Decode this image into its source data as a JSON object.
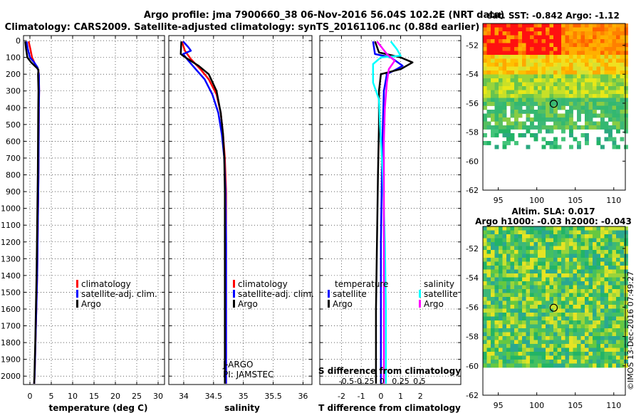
{
  "header": {
    "line1": "Argo profile: jma 7900660_38 06-Nov-2016 56.04S 102.2E (NRT data)",
    "line2": "Climatology: CARS2009. Satellite-adjusted climatology: synTS_20161106.nc (0.88d earlier)"
  },
  "colors": {
    "climatology": "#ff0000",
    "satellite": "#0000ff",
    "argo": "#000000",
    "sat_salinity": "#00ffff",
    "argo_salinity": "#ff00ff"
  },
  "chart_data": [
    {
      "type": "line",
      "name": "temperature-profile",
      "xlabel": "temperature (deg C)",
      "ylabel": "depth",
      "xlim": [
        -1.5,
        31.5
      ],
      "ylim": [
        2050,
        -30
      ],
      "xticks": [
        0,
        5,
        10,
        15,
        20,
        25,
        30
      ],
      "yticks": [
        0,
        100,
        200,
        300,
        400,
        500,
        600,
        700,
        800,
        900,
        1000,
        1100,
        1200,
        1300,
        1400,
        1500,
        1600,
        1700,
        1800,
        1900,
        2000
      ],
      "series": [
        {
          "name": "climatology",
          "color": "#ff0000",
          "points": [
            [
              -0.3,
              5
            ],
            [
              0.1,
              50
            ],
            [
              0.5,
              100
            ],
            [
              1.2,
              140
            ],
            [
              1.9,
              170
            ],
            [
              2.1,
              200
            ],
            [
              2.15,
              300
            ],
            [
              2.1,
              400
            ],
            [
              2.05,
              600
            ],
            [
              2.0,
              800
            ],
            [
              1.9,
              1000
            ],
            [
              1.8,
              1200
            ],
            [
              1.7,
              1400
            ],
            [
              1.5,
              1600
            ],
            [
              1.3,
              1800
            ],
            [
              1.1,
              2000
            ],
            [
              1.0,
              2045
            ]
          ]
        },
        {
          "name": "satellite-adj. clim.",
          "color": "#0000ff",
          "points": [
            [
              -0.8,
              5
            ],
            [
              -0.5,
              50
            ],
            [
              0.0,
              100
            ],
            [
              1.0,
              130
            ],
            [
              1.8,
              160
            ],
            [
              2.1,
              200
            ],
            [
              2.15,
              300
            ],
            [
              2.1,
              400
            ],
            [
              2.05,
              600
            ],
            [
              2.0,
              800
            ],
            [
              1.9,
              1000
            ],
            [
              1.8,
              1200
            ],
            [
              1.7,
              1400
            ],
            [
              1.5,
              1600
            ],
            [
              1.3,
              1800
            ],
            [
              1.1,
              2000
            ],
            [
              1.0,
              2045
            ]
          ]
        },
        {
          "name": "Argo",
          "color": "#000000",
          "points": [
            [
              -1.1,
              5
            ],
            [
              -0.9,
              50
            ],
            [
              -0.6,
              100
            ],
            [
              0.3,
              130
            ],
            [
              1.7,
              165
            ],
            [
              2.0,
              175
            ],
            [
              1.9,
              200
            ],
            [
              2.0,
              300
            ],
            [
              1.95,
              400
            ],
            [
              1.9,
              600
            ],
            [
              1.85,
              800
            ],
            [
              1.75,
              1000
            ],
            [
              1.65,
              1200
            ],
            [
              1.55,
              1400
            ],
            [
              1.4,
              1600
            ],
            [
              1.25,
              1800
            ],
            [
              1.05,
              2000
            ],
            [
              1.0,
              2045
            ]
          ]
        }
      ],
      "legend": [
        "climatology",
        "satellite-adj. clim.",
        "Argo"
      ]
    },
    {
      "type": "line",
      "name": "salinity-profile",
      "xlabel": "salinity",
      "ylabel": "depth",
      "xlim": [
        33.75,
        36.15
      ],
      "ylim": [
        2050,
        -30
      ],
      "xticks": [
        34,
        34.5,
        35,
        35.5,
        36
      ],
      "series": [
        {
          "name": "climatology",
          "color": "#ff0000",
          "points": [
            [
              33.97,
              5
            ],
            [
              34.02,
              60
            ],
            [
              34.12,
              110
            ],
            [
              34.28,
              170
            ],
            [
              34.42,
              230
            ],
            [
              34.55,
              320
            ],
            [
              34.62,
              430
            ],
            [
              34.66,
              560
            ],
            [
              34.69,
              700
            ],
            [
              34.71,
              900
            ],
            [
              34.71,
              1200
            ],
            [
              34.71,
              1600
            ],
            [
              34.71,
              2045
            ]
          ]
        },
        {
          "name": "satellite-adj. clim.",
          "color": "#0000ff",
          "points": [
            [
              33.99,
              5
            ],
            [
              34.08,
              40
            ],
            [
              34.12,
              60
            ],
            [
              33.99,
              80
            ],
            [
              34.08,
              120
            ],
            [
              34.2,
              170
            ],
            [
              34.35,
              230
            ],
            [
              34.48,
              320
            ],
            [
              34.58,
              430
            ],
            [
              34.64,
              560
            ],
            [
              34.68,
              700
            ],
            [
              34.7,
              900
            ],
            [
              34.71,
              1200
            ],
            [
              34.71,
              1600
            ],
            [
              34.71,
              2045
            ]
          ]
        },
        {
          "name": "Argo",
          "color": "#000000",
          "points": [
            [
              33.96,
              5
            ],
            [
              33.95,
              80
            ],
            [
              34.05,
              105
            ],
            [
              34.25,
              150
            ],
            [
              34.42,
              200
            ],
            [
              34.55,
              300
            ],
            [
              34.62,
              430
            ],
            [
              34.66,
              560
            ],
            [
              34.68,
              700
            ],
            [
              34.69,
              900
            ],
            [
              34.69,
              1200
            ],
            [
              34.69,
              1600
            ],
            [
              34.69,
              2045
            ]
          ]
        }
      ],
      "legend": [
        "climatology",
        "satellite-adj. clim.",
        "Argo"
      ],
      "annotation_lines": [
        "J-ARGO",
        "PI: JAMSTEC"
      ]
    },
    {
      "type": "line",
      "name": "difference-profile",
      "xlabel": "T difference from climatology",
      "top_axis_label": "S difference from climatology",
      "xlim": [
        -3.1,
        4.05
      ],
      "ylim": [
        2050,
        -30
      ],
      "xticks": [
        -2,
        -1,
        0,
        1,
        2
      ],
      "top_ticks": [
        "-0.5",
        "-0.25",
        "0",
        "0.25",
        "0.5"
      ],
      "series": [
        {
          "name": "temperature satellite",
          "color": "#0000ff",
          "points": [
            [
              -0.4,
              5
            ],
            [
              -0.3,
              80
            ],
            [
              0.5,
              100
            ],
            [
              1.1,
              150
            ],
            [
              0.8,
              170
            ],
            [
              0.3,
              200
            ],
            [
              0.15,
              300
            ],
            [
              0.1,
              500
            ],
            [
              0.05,
              800
            ],
            [
              0.0,
              1200
            ],
            [
              0.0,
              2045
            ]
          ]
        },
        {
          "name": "temperature Argo",
          "color": "#000000",
          "points": [
            [
              -0.3,
              5
            ],
            [
              -0.1,
              70
            ],
            [
              1.0,
              100
            ],
            [
              1.6,
              130
            ],
            [
              1.0,
              170
            ],
            [
              0.0,
              200
            ],
            [
              -0.1,
              300
            ],
            [
              -0.1,
              500
            ],
            [
              -0.15,
              800
            ],
            [
              -0.2,
              1200
            ],
            [
              -0.25,
              1600
            ],
            [
              -0.25,
              2045
            ]
          ]
        },
        {
          "name": "salinity satellite",
          "color": "#00ffff",
          "points": [
            [
              0.5,
              5
            ],
            [
              0.8,
              50
            ],
            [
              1.0,
              90
            ],
            [
              0.0,
              100
            ],
            [
              -0.4,
              140
            ],
            [
              -0.4,
              250
            ],
            [
              -0.1,
              350
            ],
            [
              -0.05,
              500
            ],
            [
              0.1,
              800
            ],
            [
              0.2,
              1200
            ],
            [
              0.25,
              1600
            ],
            [
              0.25,
              2045
            ]
          ]
        },
        {
          "name": "salinity Argo",
          "color": "#ff00ff",
          "points": [
            [
              -0.2,
              5
            ],
            [
              0.3,
              80
            ],
            [
              0.7,
              120
            ],
            [
              0.4,
              170
            ],
            [
              0.3,
              250
            ],
            [
              0.2,
              400
            ],
            [
              0.15,
              600
            ],
            [
              0.15,
              900
            ],
            [
              0.15,
              1300
            ],
            [
              0.15,
              2045
            ]
          ]
        }
      ],
      "legend_temperature_heading": "temperature",
      "legend_salinity_heading": "salinity",
      "legend_temperature": [
        "satellite",
        "Argo"
      ],
      "legend_salinity": [
        "satellite",
        "Argo"
      ]
    },
    {
      "type": "heatmap",
      "name": "sst-map",
      "title": "sat. SST: -0.842 Argo: -1.12",
      "xlim": [
        93,
        111.5
      ],
      "ylim": [
        -62,
        -50.5
      ],
      "xticks": [
        95,
        100,
        105,
        110
      ],
      "yticks": [
        -52,
        -54,
        -56,
        -58,
        -60,
        -62
      ],
      "marker": {
        "lon": 102.2,
        "lat": -56.04
      }
    },
    {
      "type": "heatmap",
      "name": "sla-map",
      "title": "Altim. SLA: 0.017",
      "subtitle": "Argo h1000: -0.03 h2000: -0.043",
      "xlim": [
        93,
        111.5
      ],
      "ylim": [
        -62,
        -50.5
      ],
      "xticks": [
        95,
        100,
        105,
        110
      ],
      "yticks": [
        -52,
        -54,
        -56,
        -58,
        -60,
        -62
      ],
      "marker": {
        "lon": 102.2,
        "lat": -56.04
      }
    }
  ],
  "side_stamp": "©IMOS 13-Dec-2016 07:49:27"
}
